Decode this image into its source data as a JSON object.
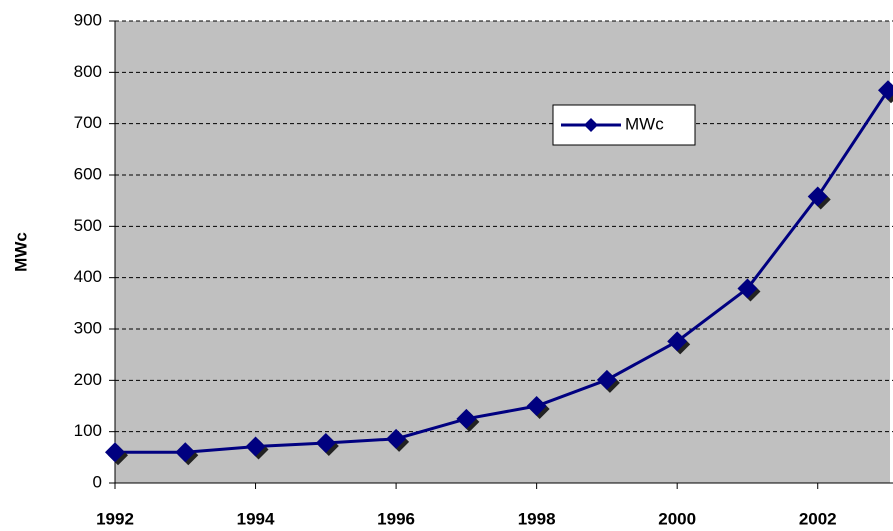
{
  "chart_data": {
    "type": "line",
    "x": [
      1992,
      1993,
      1994,
      1995,
      1996,
      1997,
      1998,
      1999,
      2000,
      2001,
      2002,
      2003
    ],
    "series": [
      {
        "name": "MWc",
        "color": "#000080",
        "values": [
          60,
          60,
          71,
          78,
          86,
          125,
          150,
          201,
          276,
          379,
          558,
          765
        ]
      }
    ],
    "xlim": [
      1992,
      2003
    ],
    "xticks": [
      1992,
      1994,
      1996,
      1998,
      2000,
      2002
    ],
    "ylim": [
      0,
      900
    ],
    "yticks": [
      0,
      100,
      200,
      300,
      400,
      500,
      600,
      700,
      800,
      900
    ],
    "ylabel": "MWc",
    "grid": true,
    "legend": "top-right"
  }
}
